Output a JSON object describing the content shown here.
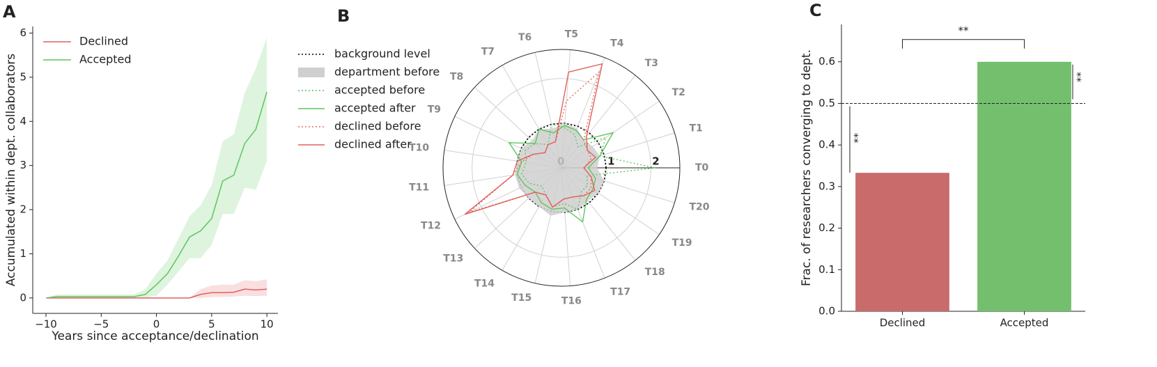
{
  "chart_data": [
    {
      "type": "line",
      "panel_label": "A",
      "xlabel": "Years since acceptance/declination",
      "ylabel": "Accumulated within dept. collaborators",
      "x": [
        -10,
        -9,
        -8,
        -7,
        -6,
        -5,
        -4,
        -3,
        -2,
        -1,
        0,
        1,
        2,
        3,
        4,
        5,
        6,
        7,
        8,
        9,
        10
      ],
      "xlim": [
        -11.2,
        11
      ],
      "ylim": [
        -0.35,
        6.15
      ],
      "xticks": [
        {
          "value": -10,
          "label": "−10"
        },
        {
          "value": -5,
          "label": "−5"
        },
        0,
        5,
        10
      ],
      "yticks": [
        0,
        1,
        2,
        3,
        4,
        5,
        6
      ],
      "legend": "upper left",
      "series": [
        {
          "name": "Declined",
          "color": "#e06060",
          "values": [
            0,
            0,
            0,
            0,
            0,
            0,
            0,
            0,
            0,
            0,
            0,
            0,
            0,
            0,
            0.08,
            0.12,
            0.12,
            0.13,
            0.2,
            0.18,
            0.2
          ],
          "lower": [
            0,
            0,
            0,
            0,
            0,
            0,
            0,
            0,
            0,
            0,
            0,
            0,
            0,
            0,
            0,
            0.02,
            0.02,
            0.03,
            0.05,
            0.04,
            0.05
          ],
          "upper": [
            0,
            0,
            0,
            0,
            0,
            0,
            0,
            0,
            0,
            0,
            0,
            0,
            0,
            0,
            0.2,
            0.28,
            0.3,
            0.3,
            0.4,
            0.38,
            0.42
          ]
        },
        {
          "name": "Accepted",
          "color": "#5cc65c",
          "values": [
            0,
            0.03,
            0.03,
            0.03,
            0.03,
            0.03,
            0.03,
            0.03,
            0.03,
            0.08,
            0.3,
            0.55,
            0.95,
            1.38,
            1.52,
            1.8,
            2.65,
            2.78,
            3.5,
            3.82,
            4.67
          ],
          "lower": [
            0,
            0,
            0,
            0,
            0,
            0,
            0,
            0,
            0,
            0,
            0.05,
            0.3,
            0.6,
            0.9,
            0.9,
            1.2,
            1.9,
            1.9,
            2.5,
            2.45,
            3.1
          ],
          "upper": [
            0,
            0.08,
            0.08,
            0.08,
            0.08,
            0.08,
            0.08,
            0.08,
            0.08,
            0.2,
            0.55,
            0.85,
            1.35,
            1.85,
            2.1,
            2.55,
            3.55,
            3.7,
            4.65,
            5.2,
            5.9
          ]
        }
      ]
    },
    {
      "type": "radar",
      "panel_label": "B",
      "categories": [
        "T0",
        "T1",
        "T2",
        "T3",
        "T4",
        "T5",
        "T6",
        "T7",
        "T8",
        "T9",
        "T10",
        "T11",
        "T12",
        "T13",
        "T14",
        "T15",
        "T16",
        "T17",
        "T18",
        "T19",
        "T20"
      ],
      "rlim": [
        0,
        2.65
      ],
      "rticks": [
        0,
        1,
        2
      ],
      "legend": "left",
      "series": [
        {
          "name": "background level",
          "color": "#000000",
          "style": "dotted",
          "values": [
            1,
            1,
            1,
            1,
            1,
            1,
            1,
            1,
            1,
            1,
            1,
            1,
            1,
            1,
            1,
            1,
            1,
            1,
            1,
            1,
            1
          ]
        },
        {
          "name": "department before",
          "color": "#cfcfcf",
          "style": "fill",
          "values": [
            0.8,
            0.9,
            0.85,
            0.8,
            0.95,
            1.0,
            0.9,
            1.0,
            0.9,
            1.0,
            1.0,
            1.05,
            1.05,
            1.0,
            1.0,
            1.1,
            1.0,
            1.0,
            0.95,
            1.0,
            1.0
          ]
        },
        {
          "name": "accepted before",
          "color": "#5cc65c",
          "style": "dotted",
          "values": [
            2.1,
            0.9,
            1.2,
            0.6,
            0.8,
            0.9,
            1.0,
            0.6,
            0.8,
            0.9,
            0.8,
            0.9,
            0.8,
            0.6,
            0.7,
            0.9,
            0.8,
            1.0,
            0.7,
            0.7,
            0.6
          ]
        },
        {
          "name": "accepted after",
          "color": "#5cc65c",
          "style": "solid",
          "values": [
            0.6,
            0.9,
            1.4,
            0.8,
            0.9,
            0.95,
            0.8,
            1.0,
            0.8,
            1.3,
            0.9,
            1.0,
            0.9,
            0.8,
            0.9,
            0.95,
            0.9,
            1.3,
            0.9,
            0.85,
            0.8
          ]
        },
        {
          "name": "declined before",
          "color": "#e07050",
          "style": "dotted",
          "values": [
            0.5,
            0.7,
            0.7,
            0.8,
            2.3,
            1.5,
            0.6,
            0.6,
            0.5,
            0.7,
            0.9,
            1.1,
            2.3,
            0.8,
            0.7,
            0.9,
            0.7,
            0.7,
            0.8,
            0.8,
            0.7
          ]
        },
        {
          "name": "declined after",
          "color": "#e06060",
          "style": "solid",
          "values": [
            0.5,
            0.8,
            0.7,
            0.9,
            2.5,
            2.15,
            0.6,
            0.6,
            0.5,
            0.7,
            1.0,
            1.1,
            2.4,
            0.8,
            0.7,
            0.9,
            0.7,
            0.7,
            0.8,
            0.9,
            0.7
          ]
        }
      ]
    },
    {
      "type": "bar",
      "panel_label": "C",
      "ylabel": "Frac. of researchers converging to dept.",
      "categories": [
        "Declined",
        "Accepted"
      ],
      "values": [
        0.333,
        0.6
      ],
      "colors": [
        "#c96b6b",
        "#73bf6d"
      ],
      "ylim": [
        0,
        0.69
      ],
      "yticks": [
        {
          "value": 0,
          "label": "0.0"
        },
        0.1,
        0.2,
        0.3,
        0.4,
        0.5,
        0.6
      ],
      "hline": 0.5,
      "annotations": [
        "**",
        "**",
        "**"
      ]
    }
  ]
}
